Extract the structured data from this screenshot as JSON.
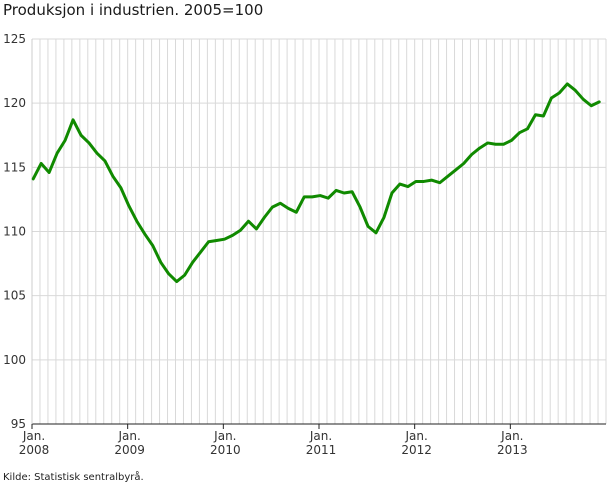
{
  "title": "Produksjon i industrien. 2005=100",
  "source": "Kilde: Statistisk sentralbyrå.",
  "colors": {
    "line": "#108a00",
    "grid": "#d9d9d9",
    "axis": "#222222"
  },
  "chart_data": {
    "type": "line",
    "title": "Produksjon i industrien. 2005=100",
    "xlabel": "",
    "ylabel": "",
    "ylim": [
      95,
      125
    ],
    "yticks": [
      95,
      100,
      105,
      110,
      115,
      120,
      125
    ],
    "grid": "vertical monthly lines, horizontal at each y tick",
    "legend": "none",
    "x_tick_labels": [
      {
        "month_index": 0,
        "line1": "Jan.",
        "line2": "2008"
      },
      {
        "month_index": 12,
        "line1": "Jan.",
        "line2": "2009"
      },
      {
        "month_index": 24,
        "line1": "Jan.",
        "line2": "2010"
      },
      {
        "month_index": 36,
        "line1": "Jan.",
        "line2": "2011"
      },
      {
        "month_index": 48,
        "line1": "Jan.",
        "line2": "2012"
      },
      {
        "month_index": 60,
        "line1": "Jan.",
        "line2": "2013"
      }
    ],
    "x_start": "2008-01",
    "x_end": "2014-01",
    "series": [
      {
        "values": [
          114.1,
          115.3,
          114.6,
          116.1,
          117.1,
          118.7,
          117.5,
          116.9,
          116.1,
          115.5,
          114.3,
          113.4,
          112.0,
          110.8,
          109.8,
          108.9,
          107.6,
          106.7,
          106.1,
          106.6,
          107.6,
          108.4,
          109.2,
          109.3,
          109.4,
          109.7,
          110.1,
          110.8,
          110.2,
          111.1,
          111.9,
          112.2,
          111.8,
          111.5,
          112.7,
          112.7,
          112.8,
          112.6,
          113.2,
          113.0,
          113.1,
          111.9,
          110.4,
          109.9,
          111.1,
          113.0,
          113.7,
          113.5,
          113.9,
          113.9,
          114.0,
          113.8,
          114.3,
          114.8,
          115.3,
          116.0,
          116.5,
          116.9,
          116.8,
          116.8,
          117.1,
          117.7,
          118.0,
          119.1,
          119.0,
          120.4,
          120.8,
          121.5,
          121.0,
          120.3,
          119.8,
          120.1
        ]
      }
    ]
  }
}
